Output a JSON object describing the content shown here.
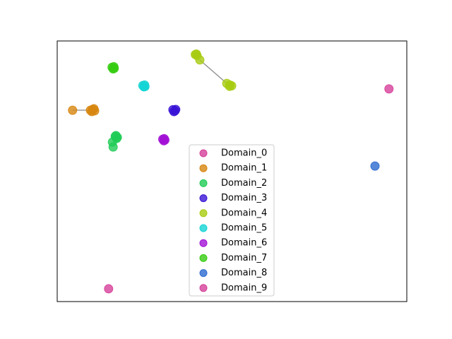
{
  "chart_data": {
    "type": "scatter",
    "xlim": [
      0,
      100
    ],
    "ylim": [
      0,
      100
    ],
    "legend": "lower center",
    "series": [
      {
        "name": "Domain_0",
        "color": "#d6409a",
        "x": [
          94.9
        ],
        "y": [
          81.6
        ]
      },
      {
        "name": "Domain_1",
        "color": "#d7860f",
        "x": [
          9.5,
          10.1,
          10.7,
          9.9,
          10.5,
          4.4
        ],
        "y": [
          73.4,
          73.7,
          73.2,
          72.9,
          74.0,
          73.4
        ]
      },
      {
        "name": "Domain_2",
        "color": "#1fcc55",
        "x": [
          16.6,
          17.2,
          17.0,
          16.8,
          15.8,
          16.0
        ],
        "y": [
          63.4,
          63.0,
          62.6,
          63.7,
          61.2,
          59.3
        ]
      },
      {
        "name": "Domain_3",
        "color": "#3a14d6",
        "x": [
          33.1,
          33.7,
          33.9,
          33.4
        ],
        "y": [
          73.6,
          73.2,
          73.7,
          72.9
        ]
      },
      {
        "name": "Domain_4",
        "color": "#a8cc12",
        "x": [
          39.5,
          40.0,
          39.8,
          40.8,
          48.5,
          49.4,
          49.9,
          49.3
        ],
        "y": [
          94.8,
          94.4,
          95.0,
          92.7,
          83.7,
          83.1,
          82.8,
          82.6
        ]
      },
      {
        "name": "Domain_5",
        "color": "#14d4d4",
        "x": [
          24.5,
          25.1,
          24.8,
          25.0
        ],
        "y": [
          82.9,
          82.5,
          82.4,
          83.1
        ]
      },
      {
        "name": "Domain_6",
        "color": "#a212d6",
        "x": [
          30.2,
          30.8,
          30.5,
          30.6
        ],
        "y": [
          62.3,
          62.0,
          61.7,
          62.5
        ]
      },
      {
        "name": "Domain_7",
        "color": "#36cc12",
        "x": [
          15.7,
          16.3,
          16.0,
          16.2
        ],
        "y": [
          89.9,
          89.5,
          89.3,
          90.1
        ]
      },
      {
        "name": "Domain_8",
        "color": "#2c6ad0",
        "x": [
          90.9
        ],
        "y": [
          52.0
        ]
      },
      {
        "name": "Domain_9",
        "color": "#d6409a",
        "x": [
          14.7
        ],
        "y": [
          4.9
        ]
      }
    ]
  }
}
